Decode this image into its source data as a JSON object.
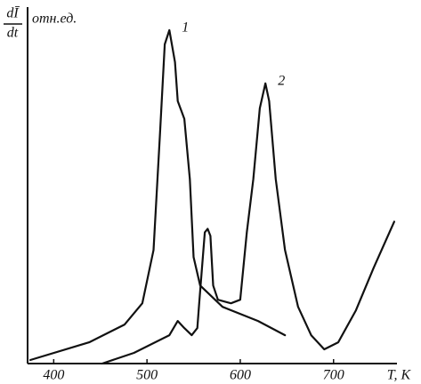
{
  "chart_data": {
    "type": "line",
    "ylabel_numerator": "dĪ",
    "ylabel_denominator": "dt",
    "yunit": "отн.ед.",
    "xlabel": "T, K",
    "xlim": [
      372,
      768
    ],
    "xticks": [
      400,
      500,
      600,
      700
    ],
    "ylim": [
      0,
      100
    ],
    "series": [
      {
        "name": "1",
        "color": "#111111",
        "x": [
          375,
          438,
          476,
          495,
          507,
          514,
          519,
          524,
          530,
          533,
          540,
          546,
          550,
          557,
          581,
          619,
          648
        ],
        "values": [
          1,
          6,
          11,
          17,
          32,
          65,
          90,
          94,
          85,
          74,
          69,
          52,
          30,
          22,
          16,
          12,
          8
        ]
      },
      {
        "name": "2",
        "color": "#111111",
        "x": [
          452,
          486,
          524,
          533,
          540,
          548,
          554,
          556,
          562,
          565,
          568,
          571,
          576,
          590,
          600,
          607,
          614,
          621,
          627,
          631,
          638,
          648,
          662,
          676,
          690,
          705,
          724,
          743,
          765
        ],
        "values": [
          0,
          3,
          8,
          12,
          10,
          8,
          10,
          17,
          37,
          38,
          36,
          22,
          18,
          17,
          18,
          37,
          52,
          72,
          79,
          74,
          52,
          32,
          16,
          8,
          4,
          6,
          15,
          27,
          40
        ]
      }
    ]
  }
}
